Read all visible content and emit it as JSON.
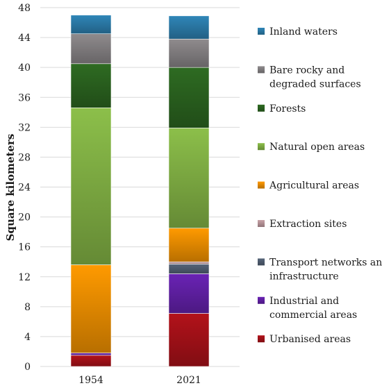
{
  "chart_data": {
    "type": "bar",
    "stacked": true,
    "categories": [
      "1954",
      "2021"
    ],
    "ylabel": "Square kilometers",
    "ylim": [
      0,
      48
    ],
    "yticks": [
      0,
      4,
      8,
      12,
      16,
      20,
      24,
      28,
      32,
      36,
      40,
      44,
      48
    ],
    "grid": true,
    "legend_position": "right",
    "series": [
      {
        "name": "Urbanised areas",
        "lines": [
          "Urbanised areas"
        ],
        "values": [
          1.5,
          7.1
        ],
        "color": "#b3121a"
      },
      {
        "name": "Industrial and commercial areas",
        "lines": [
          "Industrial and",
          "commercial areas"
        ],
        "values": [
          0.3,
          5.3
        ],
        "color": "#6a23b5"
      },
      {
        "name": "Transport networks and infrastructure",
        "lines": [
          "Transport networks and",
          "infrastructure"
        ],
        "values": [
          0.0,
          1.3
        ],
        "color": "#56657a"
      },
      {
        "name": "Extraction sites",
        "lines": [
          "Extraction sites"
        ],
        "values": [
          0.0,
          0.3
        ],
        "color": "#c9a3a8"
      },
      {
        "name": "Agricultural areas",
        "lines": [
          "Agricultural areas"
        ],
        "values": [
          11.8,
          4.5
        ],
        "color": "#ff9a00"
      },
      {
        "name": "Natural open areas",
        "lines": [
          "Natural open areas"
        ],
        "values": [
          21.0,
          13.4
        ],
        "color": "#8cbf4a"
      },
      {
        "name": "Forests",
        "lines": [
          "Forests"
        ],
        "values": [
          5.9,
          8.1
        ],
        "color": "#2e6b22"
      },
      {
        "name": "Bare rocky and degraded surfaces",
        "lines": [
          "Bare rocky and",
          "degraded surfaces"
        ],
        "values": [
          4.0,
          3.8
        ],
        "color": "#8f8b8d"
      },
      {
        "name": "Inland waters",
        "lines": [
          "Inland waters"
        ],
        "values": [
          2.5,
          3.1
        ],
        "color": "#2f86b8"
      }
    ]
  }
}
